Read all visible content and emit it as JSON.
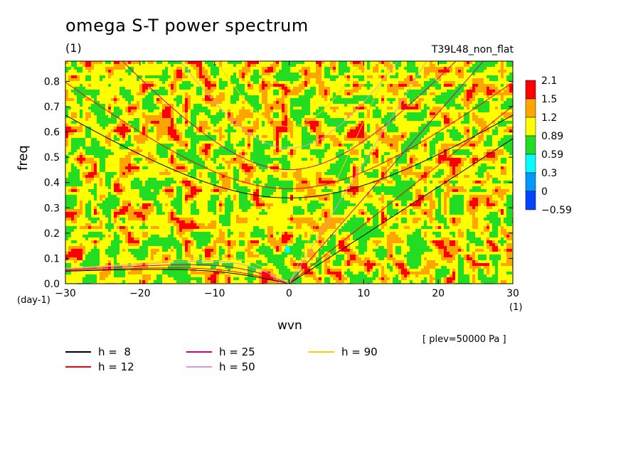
{
  "title": "omega S-T power spectrum",
  "title_unit": "(1)",
  "experiment": "T39L48_non_flat",
  "note": "[ plev=50000 Pa ]",
  "chart_data": {
    "type": "heatmap",
    "xlabel": "wvn",
    "xlabel_unit": "(1)",
    "ylabel": "freq",
    "ylabel_unit": "(day-1)",
    "xlim": [
      -30,
      30
    ],
    "ylim": [
      0,
      0.88
    ],
    "xticks": [
      -30,
      -20,
      -10,
      0,
      10,
      20,
      30
    ],
    "yticks": [
      0.0,
      0.1,
      0.2,
      0.3,
      0.4,
      0.5,
      0.6,
      0.7,
      0.8
    ],
    "colorbar": {
      "levels": [
        "2.1",
        "1.5",
        "1.2",
        "0.89",
        "0.59",
        "0.3",
        "0",
        "-0.59"
      ],
      "colors": [
        "#ff0000",
        "#ffa500",
        "#ffff00",
        "#22dd22",
        "#00ffff",
        "#0099ff",
        "#0044ff"
      ]
    },
    "dispersion_curves": [
      {
        "label": "h =  8",
        "color": "#000000"
      },
      {
        "label": "h = 12",
        "color": "#ff0000"
      },
      {
        "label": "h = 25",
        "color": "#cc0088"
      },
      {
        "label": "h = 50",
        "color": "#dd99dd"
      },
      {
        "label": "h = 90",
        "color": "#ffcc00"
      }
    ]
  }
}
